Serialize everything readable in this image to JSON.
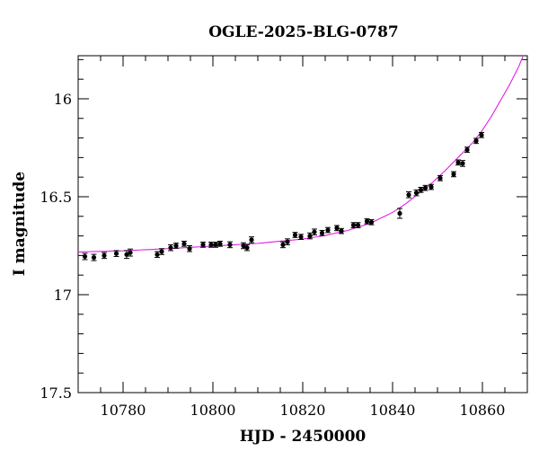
{
  "chart_data": {
    "type": "scatter",
    "title": "OGLE-2025-BLG-0787",
    "xlabel": "HJD - 2450000",
    "ylabel": "I magnitude",
    "xlim": [
      10770,
      10870
    ],
    "ylim": [
      17.5,
      15.78
    ],
    "y_inverted": true,
    "x_ticks": [
      10780,
      10800,
      10820,
      10840,
      10860
    ],
    "x_tick_labels": [
      "10780",
      "10800",
      "10820",
      "10840",
      "10860"
    ],
    "y_ticks": [
      16,
      16.5,
      17,
      17.5
    ],
    "y_tick_labels": [
      "16",
      "16.5",
      "17",
      "17.5"
    ],
    "grid": false,
    "colors": {
      "points": "#000000",
      "model": "#e020e0"
    },
    "series": [
      {
        "kind": "points",
        "x": [
          10771.5,
          10773.5,
          10775.8,
          10778.5,
          10780.8,
          10781.6,
          10787.6,
          10788.6,
          10790.6,
          10791.8,
          10793.6,
          10794.8,
          10797.8,
          10799.6,
          10800.6,
          10801.6,
          10803.8,
          10806.8,
          10807.6,
          10808.6,
          10815.6,
          10816.6,
          10818.3,
          10819.6,
          10821.6,
          10822.6,
          10824.3,
          10825.6,
          10827.6,
          10828.6,
          10831.3,
          10832.3,
          10834.3,
          10835.3,
          10841.6,
          10843.6,
          10845.3,
          10846.3,
          10847.3,
          10848.6,
          10850.6,
          10853.6,
          10854.6,
          10855.6,
          10856.6,
          10858.6,
          10859.8
        ],
        "y": [
          16.805,
          16.81,
          16.8,
          16.79,
          16.795,
          16.785,
          16.795,
          16.78,
          16.76,
          16.75,
          16.74,
          16.765,
          16.745,
          16.745,
          16.745,
          16.74,
          16.745,
          16.75,
          16.76,
          16.72,
          16.745,
          16.73,
          16.695,
          16.705,
          16.7,
          16.68,
          16.685,
          16.67,
          16.66,
          16.675,
          16.645,
          16.645,
          16.625,
          16.63,
          16.585,
          16.49,
          16.48,
          16.465,
          16.455,
          16.45,
          16.405,
          16.385,
          16.325,
          16.33,
          16.26,
          16.215,
          16.185
        ],
        "yerr": [
          0.016,
          0.016,
          0.015,
          0.015,
          0.02,
          0.018,
          0.015,
          0.015,
          0.015,
          0.013,
          0.013,
          0.015,
          0.013,
          0.013,
          0.013,
          0.013,
          0.015,
          0.015,
          0.015,
          0.015,
          0.015,
          0.015,
          0.013,
          0.013,
          0.015,
          0.015,
          0.013,
          0.013,
          0.013,
          0.013,
          0.013,
          0.013,
          0.013,
          0.013,
          0.025,
          0.015,
          0.015,
          0.013,
          0.013,
          0.013,
          0.013,
          0.013,
          0.013,
          0.015,
          0.013,
          0.013,
          0.013
        ]
      },
      {
        "kind": "model-curve",
        "x": [
          10770,
          10780,
          10790,
          10800,
          10810,
          10820,
          10825,
          10830,
          10835,
          10840,
          10843,
          10846,
          10849,
          10852,
          10855,
          10858,
          10860,
          10862,
          10864,
          10866,
          10868,
          10869
        ],
        "y": [
          16.782,
          16.776,
          16.765,
          16.752,
          16.738,
          16.716,
          16.698,
          16.672,
          16.636,
          16.58,
          16.535,
          16.48,
          16.425,
          16.36,
          16.29,
          16.22,
          16.16,
          16.09,
          16.01,
          15.93,
          15.84,
          15.785
        ]
      }
    ]
  }
}
